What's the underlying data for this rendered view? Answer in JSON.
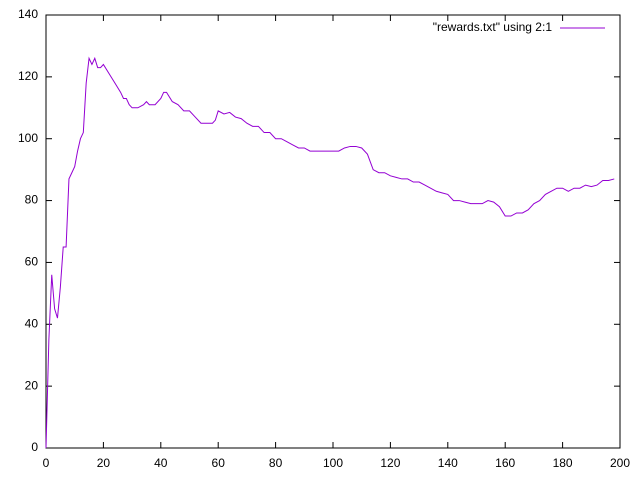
{
  "chart_data": {
    "type": "line",
    "x": [
      0,
      1,
      2,
      3,
      4,
      5,
      6,
      7,
      8,
      9,
      10,
      11,
      12,
      13,
      14,
      15,
      16,
      17,
      18,
      19,
      20,
      22,
      24,
      26,
      27,
      28,
      29,
      30,
      32,
      34,
      35,
      36,
      38,
      40,
      41,
      42,
      44,
      46,
      48,
      50,
      52,
      54,
      56,
      58,
      59,
      60,
      62,
      64,
      66,
      68,
      70,
      72,
      74,
      76,
      78,
      80,
      82,
      84,
      86,
      88,
      90,
      92,
      94,
      96,
      98,
      100,
      102,
      104,
      106,
      108,
      110,
      112,
      114,
      116,
      118,
      120,
      122,
      124,
      126,
      128,
      130,
      132,
      134,
      136,
      138,
      140,
      142,
      144,
      146,
      148,
      150,
      152,
      154,
      156,
      158,
      160,
      162,
      164,
      166,
      168,
      170,
      172,
      174,
      176,
      178,
      180,
      182,
      184,
      186,
      188,
      190,
      192,
      194,
      196,
      198
    ],
    "series": [
      {
        "name": "\"rewards.txt\" using 2:1",
        "color": "#9400d3",
        "values": [
          0,
          35,
          56,
          45,
          42,
          52,
          65,
          65,
          87,
          89,
          91,
          96,
          100,
          102,
          118,
          126,
          124,
          126,
          123,
          123,
          124,
          121,
          118,
          115,
          113,
          113,
          111,
          110,
          110,
          111,
          112,
          111,
          111,
          113,
          115,
          115,
          112,
          111,
          109,
          109,
          107,
          105,
          105,
          105,
          106,
          109,
          108,
          108.5,
          107,
          106.5,
          105,
          104,
          104,
          102,
          102,
          100,
          100,
          99,
          98,
          97,
          97,
          96,
          96,
          96,
          96,
          96,
          96,
          97,
          97.5,
          97.5,
          97,
          95,
          90,
          89,
          89,
          88,
          87.5,
          87,
          87,
          86,
          86,
          85,
          84,
          83,
          82.5,
          82,
          80,
          80,
          79.5,
          79,
          79,
          79,
          80,
          79.5,
          78,
          75,
          75,
          76,
          76,
          77,
          79,
          80,
          82,
          83,
          84,
          84,
          83,
          84,
          84,
          85,
          84.5,
          85,
          86.5,
          86.5,
          87
        ]
      }
    ],
    "xlim": [
      0,
      200
    ],
    "ylim": [
      0,
      140
    ],
    "xticks": [
      0,
      20,
      40,
      60,
      80,
      100,
      120,
      140,
      160,
      180,
      200
    ],
    "yticks": [
      0,
      20,
      40,
      60,
      80,
      100,
      120,
      140
    ],
    "legend": "top-right"
  }
}
